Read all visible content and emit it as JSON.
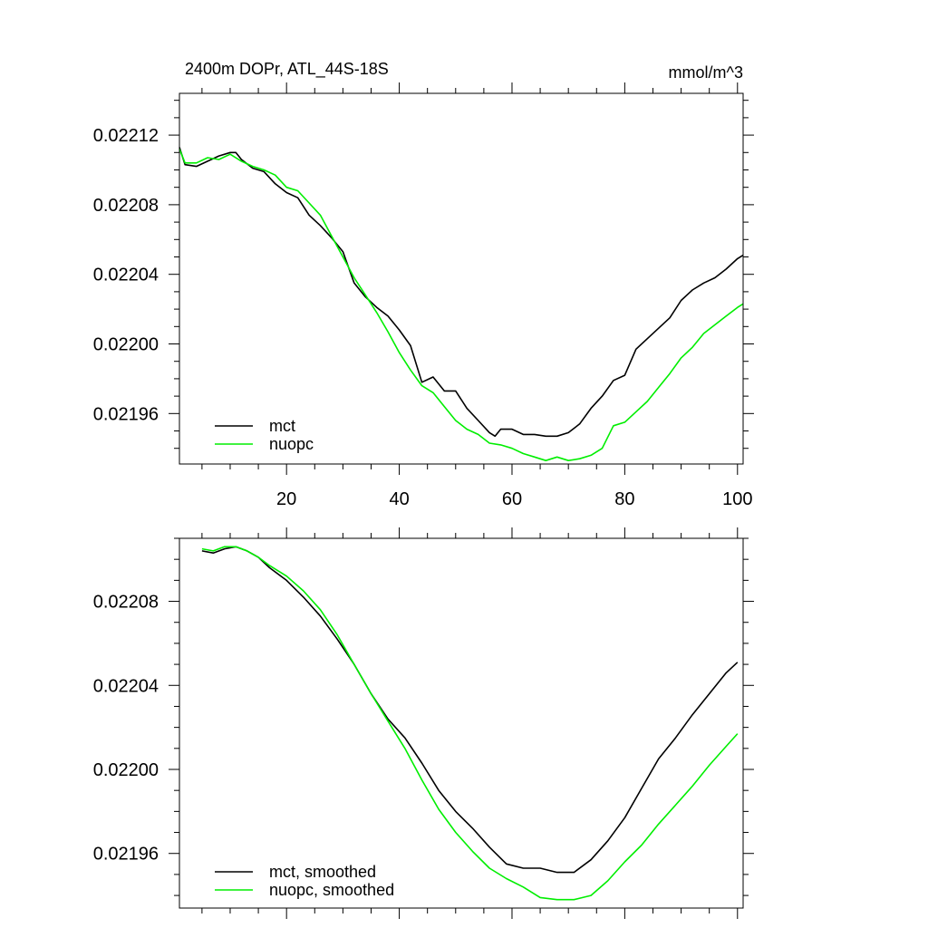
{
  "colors": {
    "mct": "#000000",
    "nuopc": "#00ee00"
  },
  "chart_data": [
    {
      "type": "line",
      "title": "2400m DOPr, ATL_44S-18S",
      "units": "mmol/m^3",
      "xlim": [
        1,
        101
      ],
      "ylim": [
        0.021931,
        0.022144
      ],
      "x_ticks": [
        20,
        40,
        60,
        80,
        100
      ],
      "y_ticks": [
        0.02196,
        0.022,
        0.02204,
        0.02208,
        0.02212
      ],
      "x_tick_labels": [
        "20",
        "40",
        "60",
        "80",
        "100"
      ],
      "y_tick_labels": [
        "0.02196",
        "0.02200",
        "0.02204",
        "0.02208",
        "0.02212"
      ],
      "legend_position": "bottom-left",
      "series": [
        {
          "name": "mct",
          "color": "#000000",
          "points": [
            [
              1,
              0.022113
            ],
            [
              2,
              0.022103
            ],
            [
              4,
              0.022102
            ],
            [
              6,
              0.022105
            ],
            [
              8,
              0.022108
            ],
            [
              10,
              0.02211
            ],
            [
              11,
              0.02211
            ],
            [
              12,
              0.022106
            ],
            [
              14,
              0.022101
            ],
            [
              16,
              0.022099
            ],
            [
              18,
              0.022092
            ],
            [
              20,
              0.022087
            ],
            [
              22,
              0.022084
            ],
            [
              24,
              0.022074
            ],
            [
              26,
              0.022068
            ],
            [
              28,
              0.022061
            ],
            [
              30,
              0.022053
            ],
            [
              32,
              0.022035
            ],
            [
              34,
              0.022027
            ],
            [
              36,
              0.022021
            ],
            [
              38,
              0.022016
            ],
            [
              40,
              0.022008
            ],
            [
              42,
              0.021999
            ],
            [
              44,
              0.021978
            ],
            [
              46,
              0.021981
            ],
            [
              48,
              0.021973
            ],
            [
              50,
              0.021973
            ],
            [
              52,
              0.021963
            ],
            [
              54,
              0.021956
            ],
            [
              56,
              0.021949
            ],
            [
              57,
              0.021947
            ],
            [
              58,
              0.021951
            ],
            [
              60,
              0.021951
            ],
            [
              62,
              0.021948
            ],
            [
              64,
              0.021948
            ],
            [
              66,
              0.021947
            ],
            [
              68,
              0.021947
            ],
            [
              70,
              0.021949
            ],
            [
              72,
              0.021954
            ],
            [
              74,
              0.021963
            ],
            [
              76,
              0.02197
            ],
            [
              78,
              0.021979
            ],
            [
              80,
              0.021982
            ],
            [
              82,
              0.021997
            ],
            [
              84,
              0.022003
            ],
            [
              86,
              0.022009
            ],
            [
              88,
              0.022015
            ],
            [
              90,
              0.022025
            ],
            [
              92,
              0.022031
            ],
            [
              94,
              0.022035
            ],
            [
              96,
              0.022038
            ],
            [
              98,
              0.022043
            ],
            [
              100,
              0.022049
            ],
            [
              101,
              0.022051
            ]
          ]
        },
        {
          "name": "nuopc",
          "color": "#00ee00",
          "points": [
            [
              1,
              0.022112
            ],
            [
              2,
              0.022104
            ],
            [
              4,
              0.022104
            ],
            [
              6,
              0.022107
            ],
            [
              8,
              0.022106
            ],
            [
              10,
              0.022109
            ],
            [
              12,
              0.022105
            ],
            [
              14,
              0.022102
            ],
            [
              16,
              0.0221
            ],
            [
              18,
              0.022097
            ],
            [
              20,
              0.02209
            ],
            [
              22,
              0.022088
            ],
            [
              24,
              0.022081
            ],
            [
              26,
              0.022074
            ],
            [
              28,
              0.022062
            ],
            [
              30,
              0.02205
            ],
            [
              32,
              0.022038
            ],
            [
              34,
              0.022028
            ],
            [
              36,
              0.022018
            ],
            [
              38,
              0.022007
            ],
            [
              40,
              0.021995
            ],
            [
              42,
              0.021985
            ],
            [
              44,
              0.021976
            ],
            [
              46,
              0.021972
            ],
            [
              48,
              0.021964
            ],
            [
              50,
              0.021956
            ],
            [
              52,
              0.021951
            ],
            [
              54,
              0.021948
            ],
            [
              56,
              0.021943
            ],
            [
              58,
              0.021942
            ],
            [
              60,
              0.02194
            ],
            [
              62,
              0.021937
            ],
            [
              64,
              0.021935
            ],
            [
              66,
              0.021933
            ],
            [
              68,
              0.021935
            ],
            [
              70,
              0.021933
            ],
            [
              72,
              0.021934
            ],
            [
              74,
              0.021936
            ],
            [
              76,
              0.02194
            ],
            [
              78,
              0.021953
            ],
            [
              80,
              0.021955
            ],
            [
              82,
              0.021961
            ],
            [
              84,
              0.021967
            ],
            [
              86,
              0.021975
            ],
            [
              88,
              0.021983
            ],
            [
              90,
              0.021992
            ],
            [
              92,
              0.021998
            ],
            [
              94,
              0.022006
            ],
            [
              96,
              0.022011
            ],
            [
              98,
              0.022016
            ],
            [
              100,
              0.022021
            ],
            [
              101,
              0.022023
            ]
          ]
        }
      ]
    },
    {
      "type": "line",
      "xlim": [
        1,
        101
      ],
      "ylim": [
        0.021934,
        0.02211
      ],
      "x_ticks": [
        20,
        40,
        60,
        80,
        100
      ],
      "y_ticks": [
        0.02196,
        0.022,
        0.02204,
        0.02208
      ],
      "y_tick_labels": [
        "0.02196",
        "0.02200",
        "0.02204",
        "0.02208"
      ],
      "legend_position": "bottom-left",
      "series": [
        {
          "name": "mct, smoothed",
          "color": "#000000",
          "points": [
            [
              5,
              0.022104
            ],
            [
              7,
              0.022103
            ],
            [
              9,
              0.022105
            ],
            [
              11,
              0.022106
            ],
            [
              13,
              0.022104
            ],
            [
              15,
              0.022101
            ],
            [
              17,
              0.022096
            ],
            [
              20,
              0.02209
            ],
            [
              23,
              0.022082
            ],
            [
              26,
              0.022073
            ],
            [
              29,
              0.022062
            ],
            [
              32,
              0.02205
            ],
            [
              35,
              0.022036
            ],
            [
              38,
              0.022024
            ],
            [
              41,
              0.022015
            ],
            [
              44,
              0.022003
            ],
            [
              47,
              0.02199
            ],
            [
              50,
              0.02198
            ],
            [
              53,
              0.021972
            ],
            [
              56,
              0.021963
            ],
            [
              59,
              0.021955
            ],
            [
              62,
              0.021953
            ],
            [
              65,
              0.021953
            ],
            [
              68,
              0.021951
            ],
            [
              71,
              0.021951
            ],
            [
              74,
              0.021957
            ],
            [
              77,
              0.021966
            ],
            [
              80,
              0.021977
            ],
            [
              83,
              0.021991
            ],
            [
              86,
              0.022005
            ],
            [
              89,
              0.022015
            ],
            [
              92,
              0.022026
            ],
            [
              95,
              0.022036
            ],
            [
              98,
              0.022046
            ],
            [
              100,
              0.022051
            ]
          ]
        },
        {
          "name": "nuopc, smoothed",
          "color": "#00ee00",
          "points": [
            [
              5,
              0.022105
            ],
            [
              7,
              0.022104
            ],
            [
              9,
              0.022106
            ],
            [
              11,
              0.022106
            ],
            [
              13,
              0.022104
            ],
            [
              15,
              0.022101
            ],
            [
              17,
              0.022097
            ],
            [
              20,
              0.022092
            ],
            [
              23,
              0.022085
            ],
            [
              26,
              0.022076
            ],
            [
              29,
              0.022064
            ],
            [
              32,
              0.02205
            ],
            [
              35,
              0.022036
            ],
            [
              38,
              0.022023
            ],
            [
              41,
              0.02201
            ],
            [
              44,
              0.021995
            ],
            [
              47,
              0.021981
            ],
            [
              50,
              0.02197
            ],
            [
              53,
              0.021961
            ],
            [
              56,
              0.021953
            ],
            [
              59,
              0.021948
            ],
            [
              62,
              0.021944
            ],
            [
              65,
              0.021939
            ],
            [
              68,
              0.021938
            ],
            [
              71,
              0.021938
            ],
            [
              74,
              0.02194
            ],
            [
              77,
              0.021947
            ],
            [
              80,
              0.021956
            ],
            [
              83,
              0.021964
            ],
            [
              86,
              0.021974
            ],
            [
              89,
              0.021983
            ],
            [
              92,
              0.021992
            ],
            [
              95,
              0.022002
            ],
            [
              98,
              0.022011
            ],
            [
              100,
              0.022017
            ]
          ]
        }
      ]
    }
  ]
}
